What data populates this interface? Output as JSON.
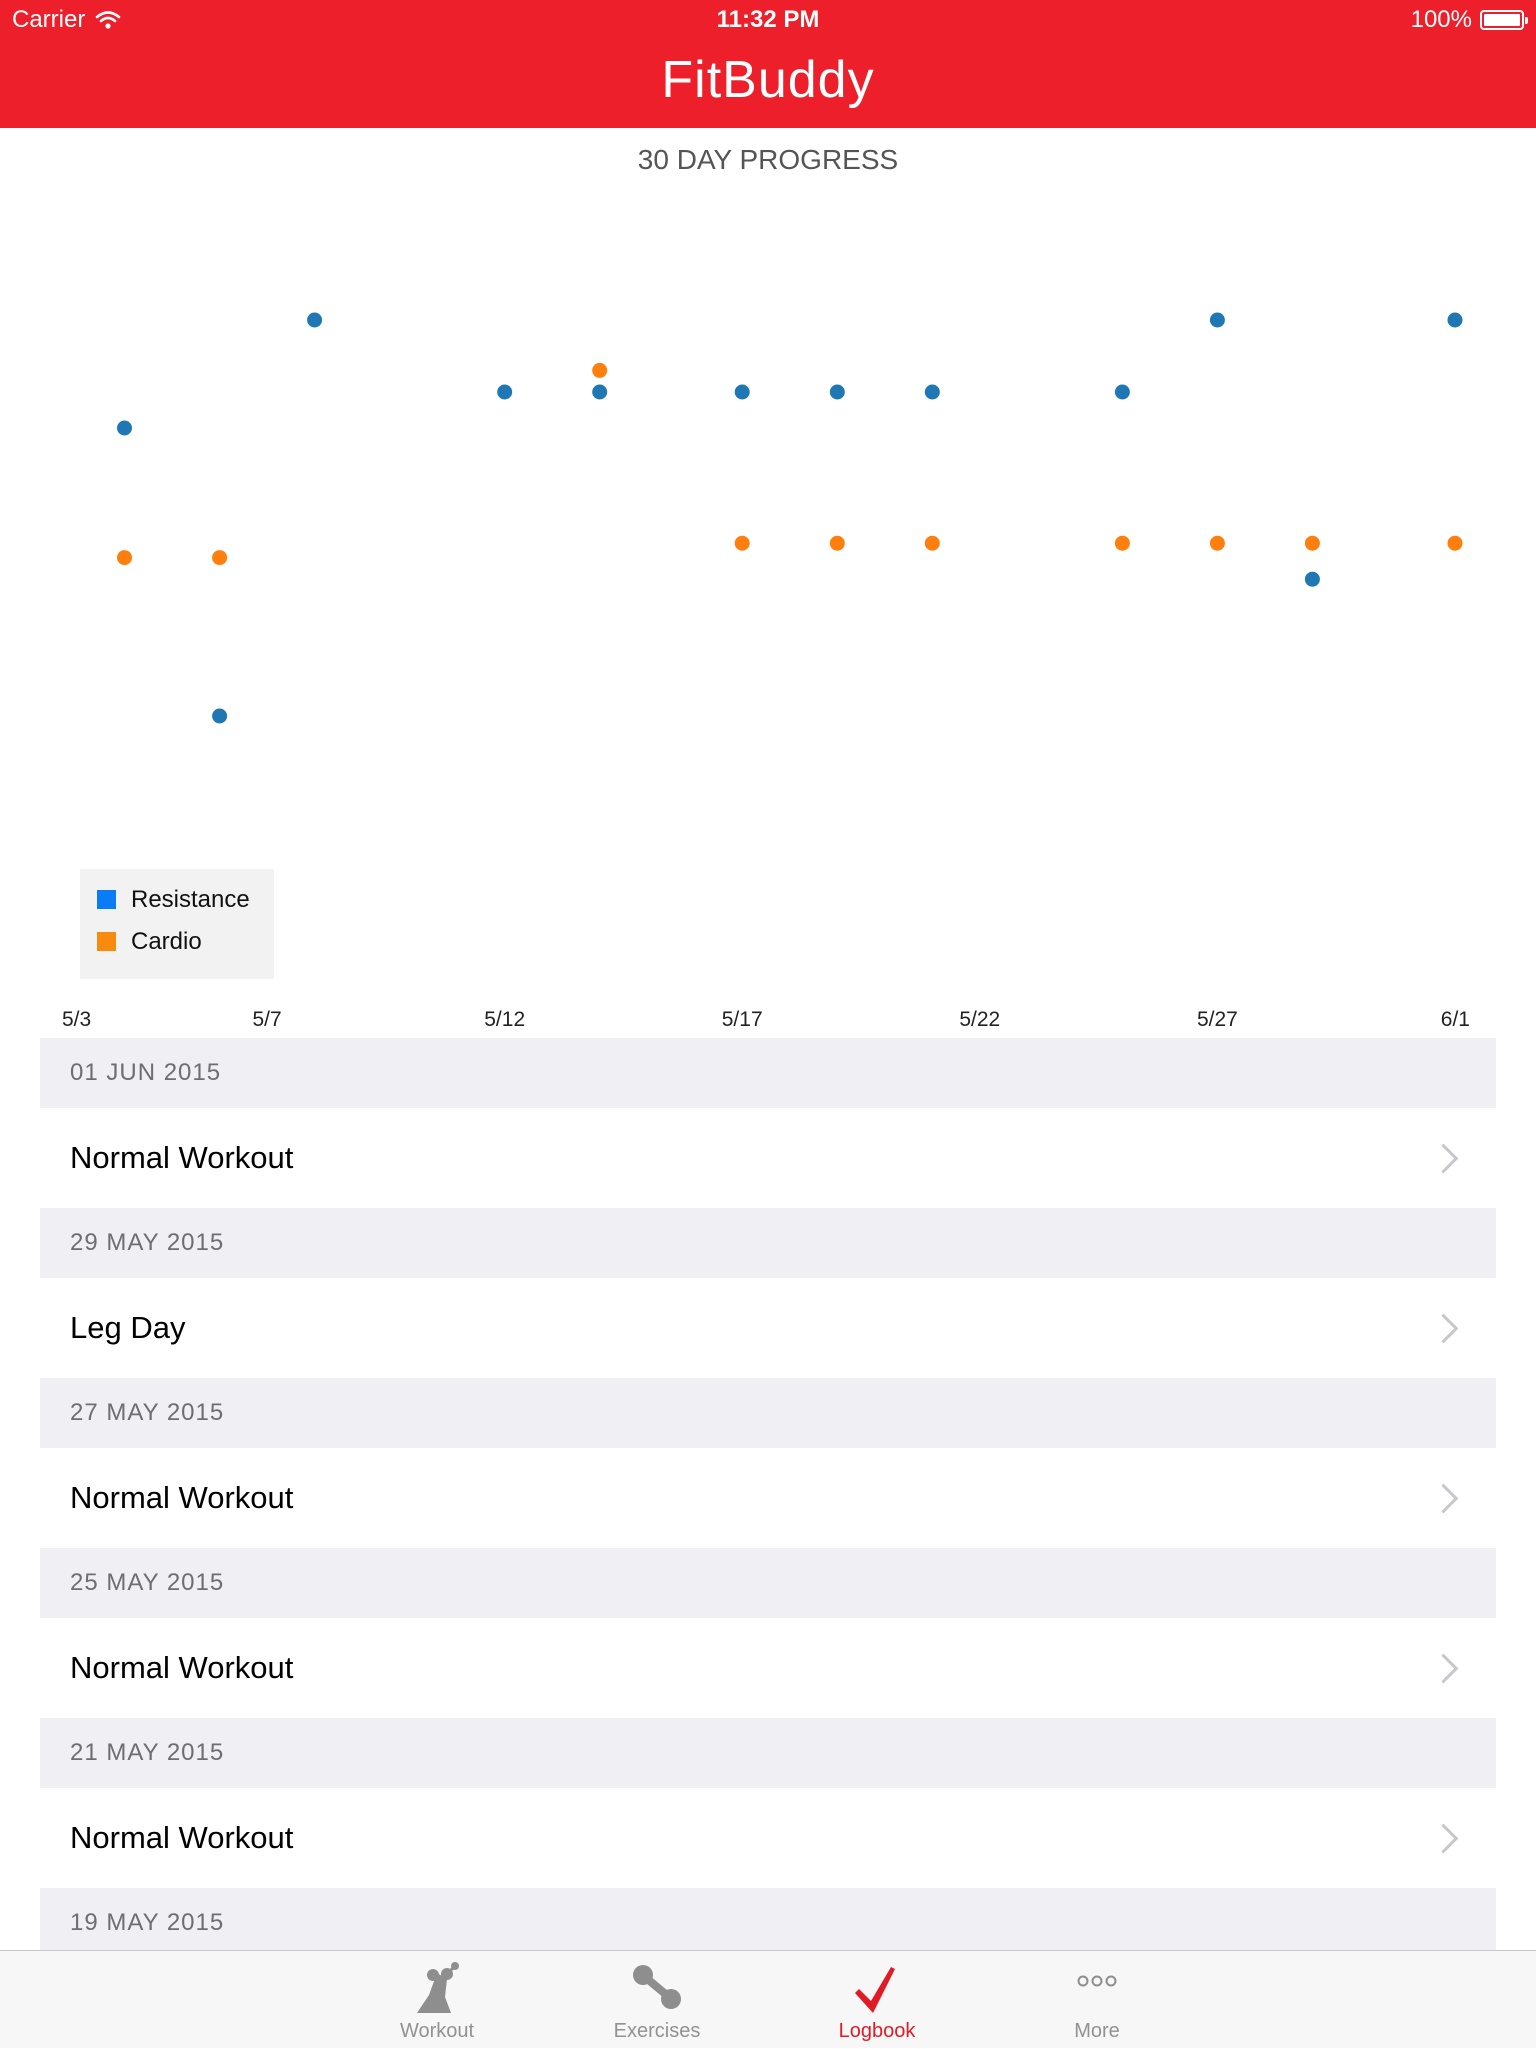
{
  "status_bar": {
    "carrier": "Carrier",
    "time": "11:32 PM",
    "battery": "100%"
  },
  "app": {
    "title": "FitBuddy"
  },
  "chart_data": {
    "type": "scatter",
    "title": "30 DAY PROGRESS",
    "x_tick_labels": [
      "5/3",
      "5/7",
      "5/12",
      "5/17",
      "5/22",
      "5/27",
      "6/1"
    ],
    "x_tick_days": [
      3,
      7,
      12,
      17,
      22,
      27,
      32
    ],
    "xlim": [
      3,
      32
    ],
    "ylim": [
      0,
      10
    ],
    "grid": false,
    "legend_position": "bottom-left",
    "series": [
      {
        "name": "Resistance",
        "color": "#1f77b4",
        "legend_color": "#0a7cf6",
        "points": [
          [
            4,
            7.5
          ],
          [
            6,
            3.5
          ],
          [
            8,
            9
          ],
          [
            12,
            8
          ],
          [
            14,
            8
          ],
          [
            17,
            8
          ],
          [
            19,
            8
          ],
          [
            21,
            8
          ],
          [
            25,
            8
          ],
          [
            27,
            9
          ],
          [
            29,
            5.4
          ],
          [
            32,
            9
          ]
        ]
      },
      {
        "name": "Cardio",
        "color": "#ff7f0e",
        "legend_color": "#f98a10",
        "points": [
          [
            4,
            5.7
          ],
          [
            6,
            5.7
          ],
          [
            14,
            8.3
          ],
          [
            17,
            5.9
          ],
          [
            19,
            5.9
          ],
          [
            21,
            5.9
          ],
          [
            25,
            5.9
          ],
          [
            27,
            5.9
          ],
          [
            29,
            5.9
          ],
          [
            32,
            5.9
          ]
        ]
      }
    ]
  },
  "logbook": {
    "entries": [
      {
        "date": "01 JUN 2015",
        "name": "Normal Workout"
      },
      {
        "date": "29 MAY 2015",
        "name": "Leg Day"
      },
      {
        "date": "27 MAY 2015",
        "name": "Normal Workout"
      },
      {
        "date": "25 MAY 2015",
        "name": "Normal Workout"
      },
      {
        "date": "21 MAY 2015",
        "name": "Normal Workout"
      },
      {
        "date": "19 MAY 2015",
        "name": ""
      }
    ]
  },
  "tabbar": {
    "tabs": [
      {
        "label": "Workout",
        "icon": "workout-figure-icon",
        "active": false
      },
      {
        "label": "Exercises",
        "icon": "dumbbell-icon",
        "active": false
      },
      {
        "label": "Logbook",
        "icon": "checkmark-icon",
        "active": true
      },
      {
        "label": "More",
        "icon": "more-dots-icon",
        "active": false
      }
    ],
    "active_color": "#e01b26",
    "inactive_color": "#929292"
  }
}
